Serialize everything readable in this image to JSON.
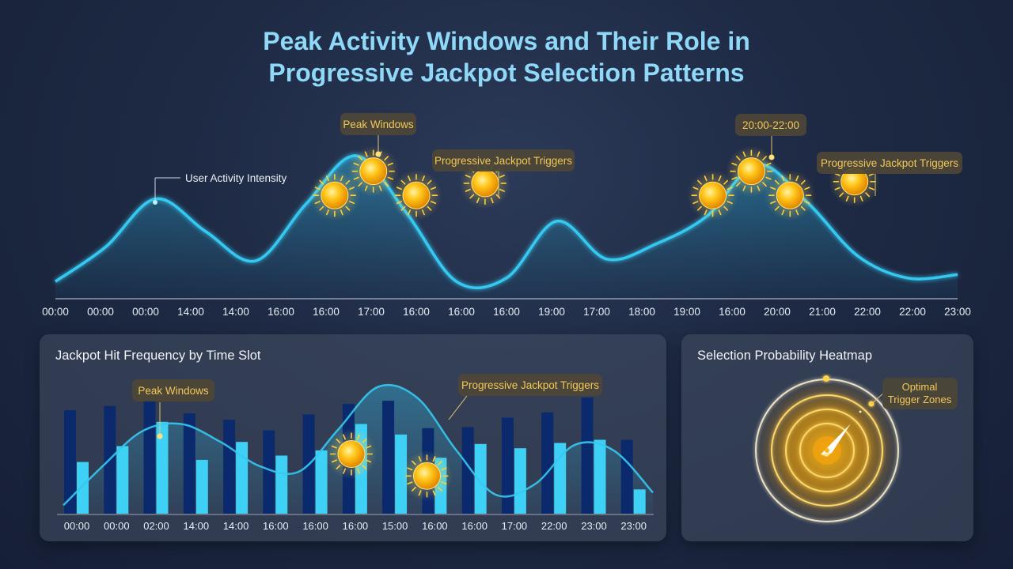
{
  "title": {
    "line1": "Peak Activity Windows and Their Role in",
    "line2": "Progressive Jackpot Selection Patterns"
  },
  "colors": {
    "curve": "#35c9f2",
    "bar_dark": "#0b2a6e",
    "bar_light": "#3fd0f6",
    "gold": "#f5b818",
    "callout_text": "#f2c85a"
  },
  "icons": [
    "sun-icon",
    "compass-needle-icon"
  ],
  "chart_data": [
    {
      "type": "area",
      "title": "",
      "ticks": [
        "00:00",
        "00:00",
        "00:00",
        "14:00",
        "14:00",
        "16:00",
        "16:00",
        "17:00",
        "16:00",
        "16:00",
        "16:00",
        "19:00",
        "17:00",
        "18:00",
        "19:00",
        "16:00",
        "20:00",
        "21:00",
        "22:00",
        "22:00",
        "23:00"
      ],
      "series": [
        {
          "name": "User Activity Intensity",
          "values": [
            0.1,
            0.3,
            0.58,
            0.39,
            0.22,
            0.55,
            0.83,
            0.5,
            0.1,
            0.12,
            0.45,
            0.23,
            0.32,
            0.48,
            0.78,
            0.56,
            0.25,
            0.12,
            0.14
          ]
        }
      ],
      "ylim": [
        0,
        1
      ],
      "grid": false,
      "annotations": [
        {
          "label": "User Activity Intensity",
          "x": 2.2
        },
        {
          "label": "Peak Windows",
          "x": 7.3
        },
        {
          "label": "Progressive Jackpot Triggers",
          "x": 10.0
        },
        {
          "label": "20:00-22:00",
          "x": 15.9
        },
        {
          "label": "Progressive Jackpot Triggers",
          "x": 18.6
        }
      ],
      "triggers": [
        {
          "x": 6.5,
          "level": 0.6
        },
        {
          "x": 7.4,
          "level": 0.74
        },
        {
          "x": 8.4,
          "level": 0.6
        },
        {
          "x": 10.0,
          "level": 0.67
        },
        {
          "x": 15.3,
          "level": 0.6
        },
        {
          "x": 16.2,
          "level": 0.74
        },
        {
          "x": 17.1,
          "level": 0.6
        },
        {
          "x": 18.6,
          "level": 0.68
        }
      ]
    },
    {
      "type": "bar",
      "title": "Jackpot Hit Frequency by Time Slot",
      "categories": [
        "00:00",
        "00:00",
        "02:00",
        "14:00",
        "14:00",
        "16:00",
        "16:00",
        "16:00",
        "15:00",
        "16:00",
        "16:00",
        "17:00",
        "22:00",
        "23:00",
        "23:00"
      ],
      "series": [
        {
          "values": [
            98,
            102,
            107,
            95,
            89,
            79,
            94,
            104,
            107,
            81,
            82,
            91,
            96,
            110,
            70
          ]
        },
        {
          "values": [
            49,
            64,
            87,
            51,
            68,
            55,
            60,
            85,
            75,
            53,
            66,
            62,
            67,
            70,
            23
          ]
        }
      ],
      "curve": [
        8,
        45,
        78,
        85,
        68,
        45,
        40,
        80,
        120,
        110,
        60,
        18,
        28,
        65,
        60,
        20
      ],
      "ylim": [
        0,
        140
      ],
      "annotations": [
        {
          "label": "Peak Windows",
          "x": 2.6
        },
        {
          "label": "Progressive Jackpot Triggers",
          "x": 9.7
        }
      ],
      "triggers": [
        {
          "x": 7.4,
          "level": 0.98
        },
        {
          "x": 9.3,
          "level": 0.62
        }
      ]
    },
    {
      "type": "heatmap",
      "title": "Selection Probability Heatmap",
      "annotations": [
        {
          "label": "Optimal",
          "label2": "Trigger Zones"
        }
      ]
    }
  ]
}
